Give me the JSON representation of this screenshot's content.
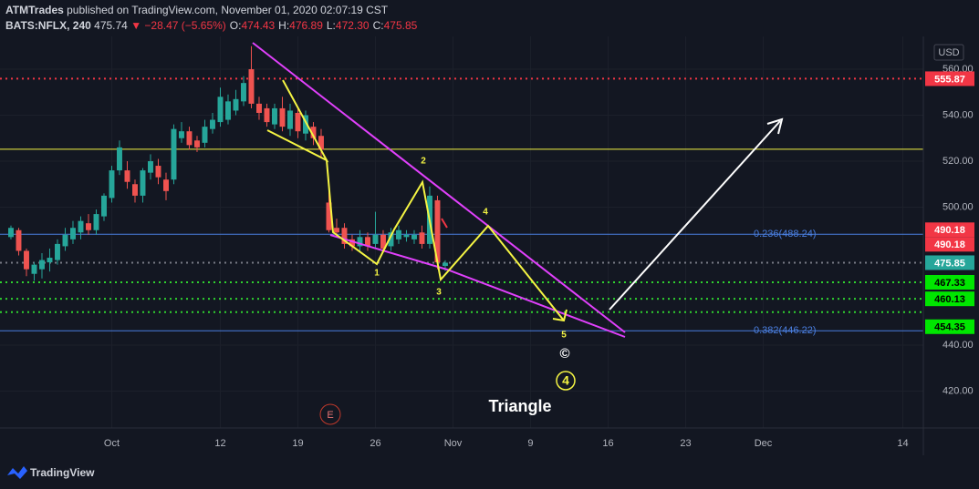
{
  "header": {
    "publisher": "ATMTrades",
    "published": " published on TradingView.com, November 01, 2020 02:07:19 CST",
    "symbol": "BATS:NFLX, 240",
    "last": "475.74",
    "change": "▼ −28.47 (−5.65%)",
    "ohlc": [
      {
        "label": "O:",
        "value": "474.43"
      },
      {
        "label": "H:",
        "value": "476.89"
      },
      {
        "label": "L:",
        "value": "472.30"
      },
      {
        "label": "C:",
        "value": "475.85"
      }
    ]
  },
  "footer": {
    "brand": "TradingView"
  },
  "chart_data": {
    "type": "candlestick",
    "currency": "USD",
    "up_color": "#26a69a",
    "down_color": "#ef5350",
    "open": [
      487,
      490,
      481,
      471,
      473,
      476,
      477,
      483,
      486,
      489,
      493,
      490,
      496,
      504,
      516,
      516,
      510,
      505,
      515,
      518,
      512,
      512,
      530,
      533,
      529,
      528,
      534,
      537,
      538,
      542,
      546,
      560,
      545,
      543,
      536,
      543,
      534,
      541,
      532,
      535,
      531,
      502,
      491,
      491,
      486,
      483,
      487,
      484,
      488,
      483,
      486,
      487,
      486,
      489,
      484,
      503,
      474.43
    ],
    "high": [
      492,
      491,
      482,
      476,
      480,
      482,
      486,
      491,
      494,
      496,
      497,
      499,
      506,
      518,
      529,
      520,
      512,
      517,
      523,
      521,
      515,
      536,
      537,
      535,
      531,
      538,
      541,
      552,
      549,
      551,
      557,
      570,
      548,
      545,
      545,
      548,
      545,
      543,
      542,
      537,
      534,
      508,
      495,
      493,
      488,
      490,
      489,
      498,
      490,
      491,
      492,
      490,
      490,
      492,
      509,
      505,
      476.89
    ],
    "low": [
      486,
      479,
      470,
      468,
      469,
      472,
      475,
      481,
      484,
      486,
      488,
      488,
      494,
      502,
      514,
      508,
      502,
      502,
      512,
      510,
      503,
      510,
      528,
      525,
      524,
      526,
      532,
      535,
      536,
      540,
      544,
      543,
      538,
      535,
      534,
      533,
      531,
      530,
      529,
      527,
      522,
      489,
      487,
      482,
      481,
      481,
      481,
      482,
      480,
      481,
      484,
      485,
      484,
      482,
      482,
      473,
      472.3
    ],
    "close": [
      491,
      481,
      473,
      475,
      477,
      478,
      484,
      488,
      491,
      494,
      490,
      497,
      505,
      516,
      526,
      511,
      505,
      516,
      520,
      513,
      507,
      534,
      533,
      527,
      526,
      535,
      538,
      548,
      546,
      547,
      554,
      545,
      541,
      537,
      543,
      535,
      542,
      533,
      540,
      530,
      525,
      490,
      489,
      484,
      483,
      487,
      483,
      488,
      482,
      489,
      490,
      488,
      488,
      484,
      505,
      476,
      475.85
    ],
    "xlim": [
      -1.41,
      117.65
    ],
    "ylim": [
      403.96,
      574.26
    ],
    "xticks": [
      {
        "value": 13,
        "label": "Oct"
      },
      {
        "value": 27,
        "label": "12"
      },
      {
        "value": 37,
        "label": "19"
      },
      {
        "value": 47,
        "label": "26"
      },
      {
        "value": 57,
        "label": "Nov"
      },
      {
        "value": 67,
        "label": "9"
      },
      {
        "value": 77,
        "label": "16"
      },
      {
        "value": 87,
        "label": "23"
      },
      {
        "value": 97,
        "label": "Dec"
      },
      {
        "value": 115,
        "label": "14"
      }
    ],
    "yticks": [
      {
        "value": 560,
        "label": "560.00"
      },
      {
        "value": 540,
        "label": "540.00"
      },
      {
        "value": 520,
        "label": "520.00"
      },
      {
        "value": 500,
        "label": "500.00"
      },
      {
        "value": 440,
        "label": "440.00"
      },
      {
        "value": 420,
        "label": "420.00"
      }
    ],
    "grid": true,
    "levels": [
      {
        "value": 555.87,
        "color": "#f23645",
        "style": "dotted"
      },
      {
        "value": 525.2,
        "color": "#f5f543",
        "style": "solid"
      },
      {
        "value": 475.85,
        "color": "#787b86",
        "style": "dotted"
      },
      {
        "value": 467.33,
        "color": "#2fd22f",
        "style": "dotted"
      },
      {
        "value": 460.13,
        "color": "#2fd22f",
        "style": "dotted"
      },
      {
        "value": 454.35,
        "color": "#2fd22f",
        "style": "dotted"
      }
    ],
    "fib_levels": [
      {
        "value": 488.24,
        "label": "0.236(488.24)",
        "color": "#4a7fe0"
      },
      {
        "value": 446.22,
        "label": "0.382(446.22)",
        "color": "#4a7fe0"
      }
    ],
    "price_tags": [
      {
        "value": 555.87,
        "color": "#f23645"
      },
      {
        "value": 490.18,
        "color": "#f23645"
      },
      {
        "value": 490.18,
        "color": "#f23645"
      },
      {
        "value": 475.85,
        "color": "#26a69a"
      },
      {
        "value": 467.33,
        "color": "#00e600"
      },
      {
        "value": 460.13,
        "color": "#00e600"
      },
      {
        "value": 454.35,
        "color": "#00e600"
      }
    ],
    "annotations": {
      "w1": "1",
      "w2": "2",
      "w3": "3",
      "w4": "4",
      "w5": "5",
      "c": "©",
      "big4": "4",
      "triangle": "Triangle",
      "earnings": "E"
    }
  }
}
